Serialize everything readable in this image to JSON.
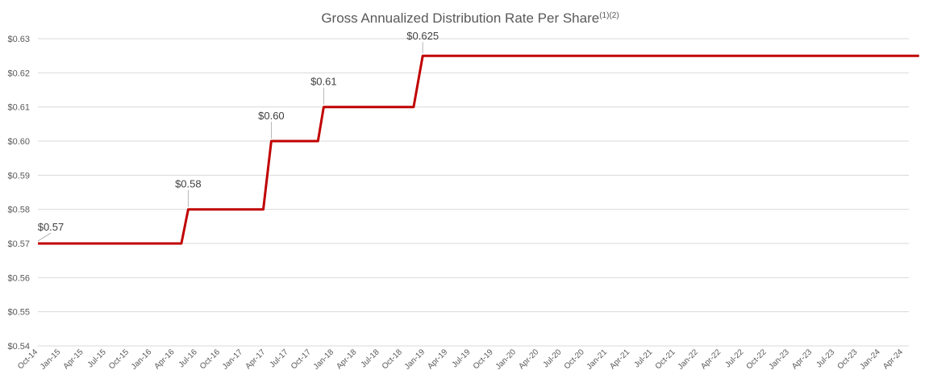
{
  "chart_data": {
    "type": "line",
    "title": "Gross Annualized Distribution Rate Per Share",
    "title_superscript": "(1)(2)",
    "xlabel": "",
    "ylabel": "",
    "ylim": [
      0.54,
      0.63
    ],
    "y_ticks": [
      "$0.54",
      "$0.55",
      "$0.56",
      "$0.57",
      "$0.58",
      "$0.59",
      "$0.60",
      "$0.61",
      "$0.62",
      "$0.63"
    ],
    "grid": true,
    "line_color": "#c00000",
    "categories": [
      "Oct-14",
      "Jan-15",
      "Apr-15",
      "Jul-15",
      "Oct-15",
      "Jan-16",
      "Apr-16",
      "Jul-16",
      "Oct-16",
      "Jan-17",
      "Apr-17",
      "Jul-17",
      "Oct-17",
      "Jan-18",
      "Apr-18",
      "Jul-18",
      "Oct-18",
      "Jan-19",
      "Apr-19",
      "Jul-19",
      "Oct-19",
      "Jan-20",
      "Apr-20",
      "Jul-20",
      "Oct-20",
      "Jan-21",
      "Apr-21",
      "Jul-21",
      "Oct-21",
      "Jan-22",
      "Apr-22",
      "Jul-22",
      "Oct-22",
      "Jan-23",
      "Apr-23",
      "Jul-23",
      "Oct-23",
      "Jan-24",
      "Apr-24"
    ],
    "series": [
      {
        "name": "Gross Annualized Distribution Rate Per Share",
        "points": [
          {
            "x": 0,
            "y": 0.57
          },
          {
            "x": 6.3,
            "y": 0.57
          },
          {
            "x": 6.6,
            "y": 0.58
          },
          {
            "x": 9.9,
            "y": 0.58
          },
          {
            "x": 10.25,
            "y": 0.6
          },
          {
            "x": 12.3,
            "y": 0.6
          },
          {
            "x": 12.55,
            "y": 0.61
          },
          {
            "x": 16.5,
            "y": 0.61
          },
          {
            "x": 16.9,
            "y": 0.625
          },
          {
            "x": 38.7,
            "y": 0.625
          }
        ]
      }
    ],
    "annotations": [
      {
        "text": "$0.57",
        "x": 0,
        "y": 0.57
      },
      {
        "text": "$0.58",
        "x": 6.6,
        "y": 0.58
      },
      {
        "text": "$0.60",
        "x": 10.25,
        "y": 0.6
      },
      {
        "text": "$0.61",
        "x": 12.55,
        "y": 0.61
      },
      {
        "text": "$0.625",
        "x": 16.9,
        "y": 0.625
      }
    ]
  }
}
